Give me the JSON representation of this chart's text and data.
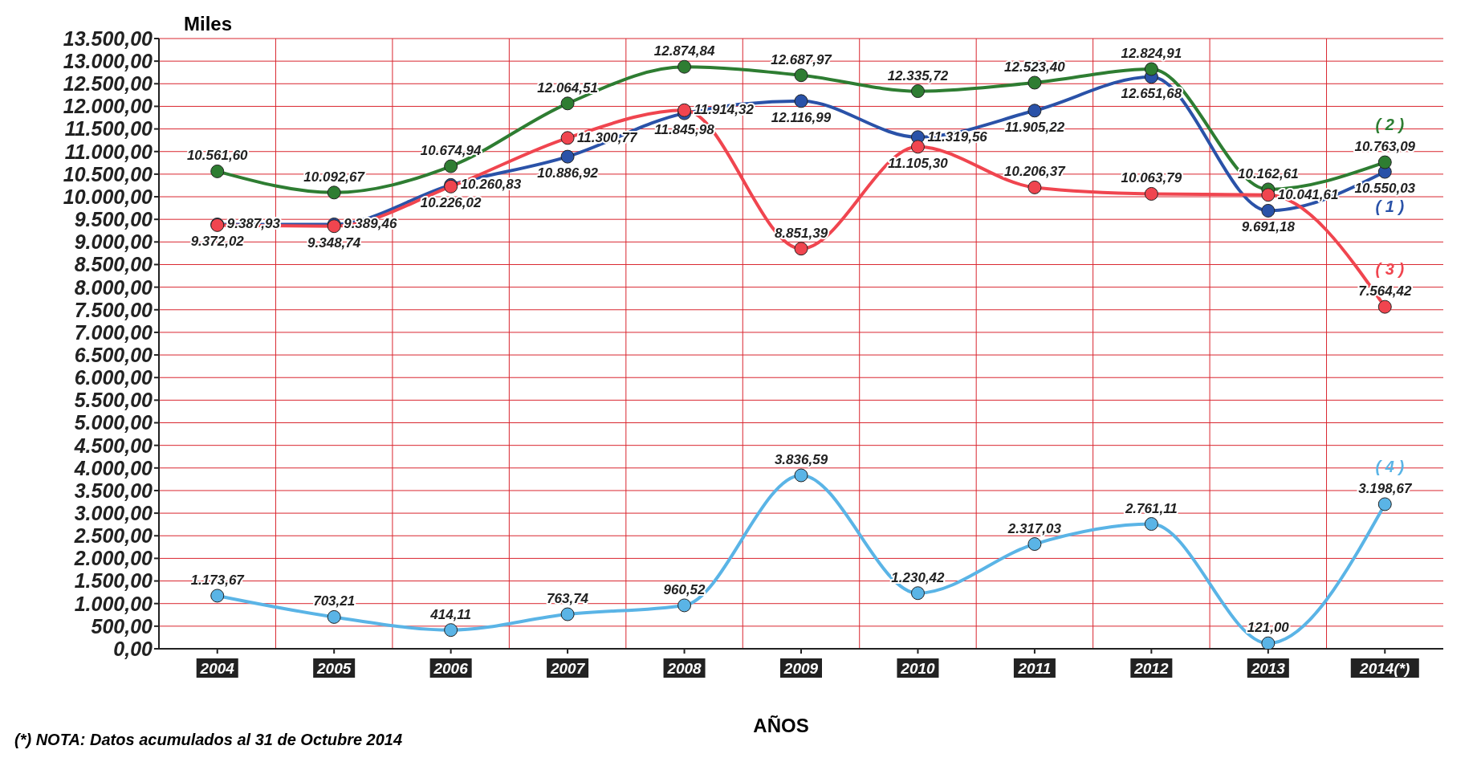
{
  "chart_data": {
    "type": "line",
    "ylabel": "Miles",
    "xlabel": "AÑOS",
    "annotations": [
      "(*) NOTA: Datos acumulados al 31 de Octubre 2014"
    ],
    "categories": [
      "2004",
      "2005",
      "2006",
      "2007",
      "2008",
      "2009",
      "2010",
      "2011",
      "2012",
      "2013",
      "2014(*)"
    ],
    "series": [
      {
        "name": "( 1 )",
        "color": "#2a52a8",
        "values": [
          9387.93,
          9389.46,
          10260.83,
          10886.92,
          11845.98,
          12116.99,
          11319.56,
          11905.22,
          12651.68,
          9691.18,
          10550.03
        ],
        "value_labels": [
          "9.387,93",
          "9.389,46",
          "10.260,83",
          "10.886,92",
          "11.845,98",
          "12.116,99",
          "11.319,56",
          "11.905,22",
          "12.651,68",
          "9.691,18",
          "10.550,03"
        ]
      },
      {
        "name": "( 2 )",
        "color": "#2e7d32",
        "values": [
          10561.6,
          10092.67,
          10674.94,
          12064.51,
          12874.84,
          12687.97,
          12335.72,
          12523.4,
          12824.91,
          10162.61,
          10763.09
        ],
        "value_labels": [
          "10.561,60",
          "10.092,67",
          "10.674,94",
          "12.064,51",
          "12.874,84",
          "12.687,97",
          "12.335,72",
          "12.523,40",
          "12.824,91",
          "10.162,61",
          "10.763,09"
        ]
      },
      {
        "name": "( 3 )",
        "color": "#f0454f",
        "values": [
          9372.02,
          9348.74,
          10226.02,
          11300.77,
          11914.32,
          8851.39,
          11105.3,
          10206.37,
          10063.79,
          10041.61,
          7564.42
        ],
        "value_labels": [
          "9.372,02",
          "9.348,74",
          "10.226,02",
          "11.300,77",
          "11.914,32",
          "8.851,39",
          "11.105,30",
          "10.206,37",
          "10.063,79",
          "10.041,61",
          "7.564,42"
        ]
      },
      {
        "name": "( 4 )",
        "color": "#5ab4e6",
        "values": [
          1173.67,
          703.21,
          414.11,
          763.74,
          960.52,
          3836.59,
          1230.42,
          2317.03,
          2761.11,
          121.0,
          3198.67
        ],
        "value_labels": [
          "1.173,67",
          "703,21",
          "414,11",
          "763,74",
          "960,52",
          "3.836,59",
          "1.230,42",
          "2.317,03",
          "2.761,11",
          "121,00",
          "3.198,67"
        ]
      }
    ],
    "ylim": [
      0,
      13500
    ],
    "yticks": [
      {
        "value": 0,
        "label": "0,00"
      },
      {
        "value": 500,
        "label": "500,00"
      },
      {
        "value": 1000,
        "label": "1.000,00"
      },
      {
        "value": 1500,
        "label": "1.500,00"
      },
      {
        "value": 2000,
        "label": "2.000,00"
      },
      {
        "value": 2500,
        "label": "2.500,00"
      },
      {
        "value": 3000,
        "label": "3.000,00"
      },
      {
        "value": 3500,
        "label": "3.500,00"
      },
      {
        "value": 4000,
        "label": "4.000,00"
      },
      {
        "value": 4500,
        "label": "4.500,00"
      },
      {
        "value": 5000,
        "label": "5.000,00"
      },
      {
        "value": 5500,
        "label": "5.500,00"
      },
      {
        "value": 6000,
        "label": "6.000,00"
      },
      {
        "value": 6500,
        "label": "6.500,00"
      },
      {
        "value": 7000,
        "label": "7.000,00"
      },
      {
        "value": 7500,
        "label": "7.500,00"
      },
      {
        "value": 8000,
        "label": "8.000,00"
      },
      {
        "value": 8500,
        "label": "8.500,00"
      },
      {
        "value": 9000,
        "label": "9.000,00"
      },
      {
        "value": 9500,
        "label": "9.500,00"
      },
      {
        "value": 10000,
        "label": "10.000,00"
      },
      {
        "value": 10500,
        "label": "10.500,00"
      },
      {
        "value": 11000,
        "label": "11.000,00"
      },
      {
        "value": 11500,
        "label": "11.500,00"
      },
      {
        "value": 12000,
        "label": "12.000,00"
      },
      {
        "value": 12500,
        "label": "12.500,00"
      },
      {
        "value": 13000,
        "label": "13.000,00"
      },
      {
        "value": 13500,
        "label": "13.500,00"
      }
    ],
    "grid": true,
    "marker": "circle",
    "line_style": "solid",
    "legend": false
  }
}
